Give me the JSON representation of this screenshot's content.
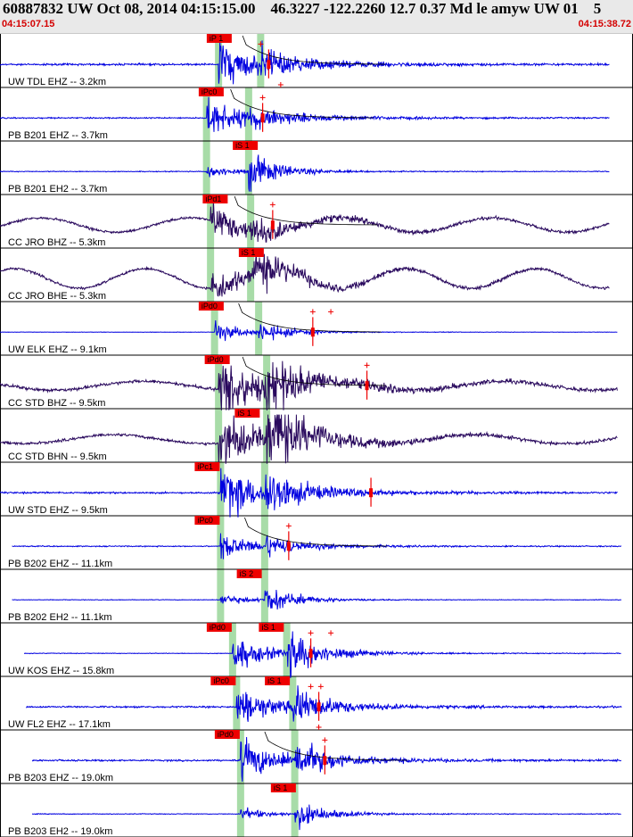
{
  "header": {
    "title": "60887832 UW Oct 08, 2014 04:15:15.00    46.3227 -122.2260 12.7 0.37 Md le amyw UW 01    5",
    "start_time": "04:15:07.15",
    "end_time": "04:15:38.72"
  },
  "colors": {
    "trace_blue": "#0000e0",
    "trace_purple": "#2a0a5e",
    "pick_red": "#ee0000",
    "window_green": "#a8dca8",
    "background": "#ffffff"
  },
  "chart_data": {
    "type": "line",
    "title": "60887832 UW Oct 08, 2014 04:15:15.00 46.3227 -122.2260 12.7 0.37 Md le amyw UW 01 5",
    "x_range": [
      "04:15:07.15",
      "04:15:38.72"
    ],
    "traces": [
      {
        "label": "UW TDL EHZ -- 3.2km",
        "color": "blue",
        "pick": "iP 1",
        "pick_t": 10.4,
        "p_t": 10.9,
        "s_t": 13.0,
        "start_t": 0.0,
        "end_t": 30.4,
        "lowfreq": false,
        "noise": 0.9,
        "amp": 18,
        "swave": 0.6,
        "coda": 0.45,
        "strong_bottom": false,
        "curve": true,
        "plus": [
          {
            "t": 13.0,
            "a": 1
          },
          {
            "t": 14.0,
            "a": -1
          }
        ],
        "amp_mark": 13.4
      },
      {
        "label": "PB B201 EHZ -- 3.7km",
        "color": "blue",
        "pick": "iPc0",
        "pick_t": 10.0,
        "p_t": 10.3,
        "s_t": 12.4,
        "start_t": 0.0,
        "end_t": 30.4,
        "lowfreq": false,
        "noise": 0.6,
        "amp": 14,
        "swave": 0.6,
        "coda": 0.5,
        "strong_bottom": false,
        "curve": true,
        "plus": [
          {
            "t": 13.1,
            "a": 1
          }
        ],
        "amp_mark": 13.1
      },
      {
        "label": "PB B201 EH2 -- 3.7km",
        "color": "blue",
        "pick": "iS 1",
        "pick_t": 11.7,
        "p_t": 10.3,
        "s_t": 12.4,
        "start_t": 0.0,
        "end_t": 30.4,
        "lowfreq": false,
        "noise": 0.4,
        "amp": 6,
        "swave": 3.0,
        "coda": 0.15,
        "strong_bottom": true,
        "curve": false,
        "plus": [],
        "amp_mark": null
      },
      {
        "label": "CC JRO BHZ -- 5.3km",
        "color": "purple",
        "pick": "iPd1",
        "pick_t": 10.2,
        "p_t": 10.5,
        "s_t": 12.5,
        "start_t": 0.0,
        "end_t": 30.4,
        "lowfreq": true,
        "noise": 1.2,
        "amp": 12,
        "swave": 0.7,
        "coda": 0.6,
        "strong_bottom": false,
        "curve": true,
        "plus": [
          {
            "t": 13.6,
            "a": 1
          }
        ],
        "amp_mark": 13.6,
        "lf_amp": 8,
        "lf_period": 7.5
      },
      {
        "label": "CC JRO BHE -- 5.3km",
        "color": "purple",
        "pick": "iS 1",
        "pick_t": 12.0,
        "p_t": 10.5,
        "s_t": 12.5,
        "start_t": 0.0,
        "end_t": 30.4,
        "lowfreq": true,
        "noise": 1.2,
        "amp": 10,
        "swave": 2.0,
        "coda": 0.7,
        "strong_bottom": true,
        "curve": false,
        "plus": [],
        "amp_mark": null,
        "lf_amp": 11,
        "lf_period": 6.5
      },
      {
        "label": "UW ELK EHZ -- 9.1km",
        "color": "blue",
        "pick": "iPd0",
        "pick_t": 10.0,
        "p_t": 10.7,
        "s_t": 12.9,
        "start_t": 0.0,
        "end_t": 30.8,
        "lowfreq": false,
        "noise": 0.2,
        "amp": 10,
        "swave": 0.9,
        "coda": 0.1,
        "strong_bottom": true,
        "curve": true,
        "plus": [
          {
            "t": 15.6,
            "a": 1
          },
          {
            "t": 16.5,
            "a": 1
          }
        ],
        "amp_mark": 15.6
      },
      {
        "label": "CC STD BHZ -- 9.5km",
        "color": "purple",
        "pick": "iPd0",
        "pick_t": 10.3,
        "p_t": 10.9,
        "s_t": 13.3,
        "start_t": 0.0,
        "end_t": 30.8,
        "lowfreq": true,
        "noise": 1.5,
        "amp": 18,
        "swave": 1.2,
        "coda": 0.8,
        "strong_bottom": false,
        "curve": true,
        "plus": [
          {
            "t": 18.3,
            "a": 1
          }
        ],
        "amp_mark": 18.3,
        "lf_amp": 5,
        "lf_period": 9
      },
      {
        "label": "CC STD BHN -- 9.5km",
        "color": "purple",
        "pick": "iS 1",
        "pick_t": 11.8,
        "p_t": 10.9,
        "s_t": 13.3,
        "start_t": 0.0,
        "end_t": 30.8,
        "lowfreq": true,
        "noise": 1.3,
        "amp": 18,
        "swave": 2.2,
        "coda": 0.8,
        "strong_bottom": true,
        "curve": false,
        "plus": [],
        "amp_mark": null,
        "lf_amp": 5,
        "lf_period": 9
      },
      {
        "label": "UW STD EHZ -- 9.5km",
        "color": "blue",
        "pick": "iPc1",
        "pick_t": 9.8,
        "p_t": 11.0,
        "s_t": 13.2,
        "start_t": 0.0,
        "end_t": 30.8,
        "lowfreq": false,
        "noise": 0.8,
        "amp": 22,
        "swave": 0.8,
        "coda": 0.45,
        "strong_bottom": false,
        "curve": false,
        "plus": [],
        "amp_mark": 18.5
      },
      {
        "label": "PB B202 EHZ -- 11.1km",
        "color": "blue",
        "pick": "iPc0",
        "pick_t": 9.8,
        "p_t": 11.0,
        "s_t": 13.2,
        "start_t": 0.6,
        "end_t": 31.0,
        "lowfreq": false,
        "noise": 0.5,
        "amp": 10,
        "swave": 0.9,
        "coda": 0.35,
        "strong_bottom": false,
        "curve": true,
        "plus": [
          {
            "t": 14.4,
            "a": 1
          }
        ],
        "amp_mark": 14.4
      },
      {
        "label": "PB B202 EH2 -- 11.1km",
        "color": "blue",
        "pick": "iS 2",
        "pick_t": 11.9,
        "p_t": 11.0,
        "s_t": 13.2,
        "start_t": 0.6,
        "end_t": 31.0,
        "lowfreq": false,
        "noise": 0.3,
        "amp": 5,
        "swave": 2.8,
        "coda": 0.12,
        "strong_bottom": true,
        "curve": false,
        "plus": [],
        "amp_mark": null
      },
      {
        "label": "UW KOS EHZ -- 15.8km",
        "color": "blue",
        "pick": "iPd0",
        "pick_t": 10.4,
        "p_t": 11.6,
        "s_t": 14.3,
        "start_t": 1.2,
        "end_t": 31.0,
        "lowfreq": false,
        "noise": 0.3,
        "amp": 14,
        "swave": 1.6,
        "coda": 0.3,
        "strong_bottom": true,
        "curve": false,
        "pick2": "iS 1",
        "pick2_t": 13.0,
        "plus": [
          {
            "t": 15.5,
            "a": 1
          },
          {
            "t": 16.5,
            "a": 1
          }
        ],
        "amp_mark": 15.5
      },
      {
        "label": "UW FL2 EHZ -- 17.1km",
        "color": "blue",
        "pick": "iPc0",
        "pick_t": 10.6,
        "p_t": 11.8,
        "s_t": 14.6,
        "start_t": 1.3,
        "end_t": 31.0,
        "lowfreq": false,
        "noise": 0.8,
        "amp": 14,
        "swave": 1.2,
        "coda": 0.5,
        "strong_bottom": false,
        "curve": false,
        "pick2": "iS 1",
        "pick2_t": 13.3,
        "plus": [
          {
            "t": 15.5,
            "a": 1
          },
          {
            "t": 15.9,
            "a": -1
          },
          {
            "t": 16.0,
            "a": 1
          }
        ],
        "amp_mark": 15.9
      },
      {
        "label": "PB B203 EHZ -- 19.0km",
        "color": "blue",
        "pick": "iPd0",
        "pick_t": 10.8,
        "p_t": 12.0,
        "s_t": 14.7,
        "start_t": 1.6,
        "end_t": 31.0,
        "lowfreq": false,
        "noise": 0.8,
        "amp": 14,
        "swave": 1.2,
        "coda": 0.55,
        "strong_bottom": false,
        "curve": true,
        "plus": [
          {
            "t": 16.2,
            "a": 1
          }
        ],
        "amp_mark": 16.2
      },
      {
        "label": "PB B203 EH2 -- 19.0km",
        "color": "blue",
        "pick": "iS 1",
        "pick_t": 13.6,
        "p_t": 12.0,
        "s_t": 14.7,
        "start_t": 1.6,
        "end_t": 31.0,
        "lowfreq": false,
        "noise": 0.35,
        "amp": 5,
        "swave": 2.6,
        "coda": 0.2,
        "strong_bottom": true,
        "curve": false,
        "plus": [],
        "amp_mark": null
      }
    ]
  }
}
